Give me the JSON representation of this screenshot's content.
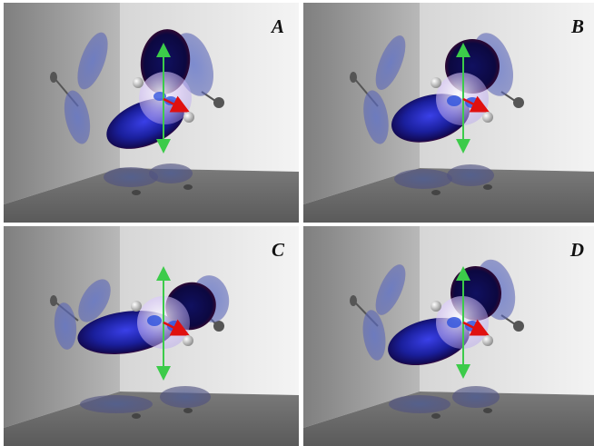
{
  "panels": [
    {
      "id": "A",
      "label": "A"
    },
    {
      "id": "B",
      "label": "B"
    },
    {
      "id": "C",
      "label": "C"
    },
    {
      "id": "D",
      "label": "D"
    }
  ],
  "colors": {
    "lobe_dark": "#1a0a55",
    "lobe_blue": "#1f2ab8",
    "lobe_red": "#7a0a1a",
    "arrow_green": "#3ccb4a",
    "arrow_red": "#e01010",
    "sphere": "#d9c8ff",
    "floor": "#6c6c6c",
    "wall_left": "#9a9a9a",
    "wall_back": "#e2e2e2"
  },
  "icons": [
    "y-axis-arrow-icon",
    "x-axis-arrow-icon",
    "atom-sphere-icon"
  ]
}
